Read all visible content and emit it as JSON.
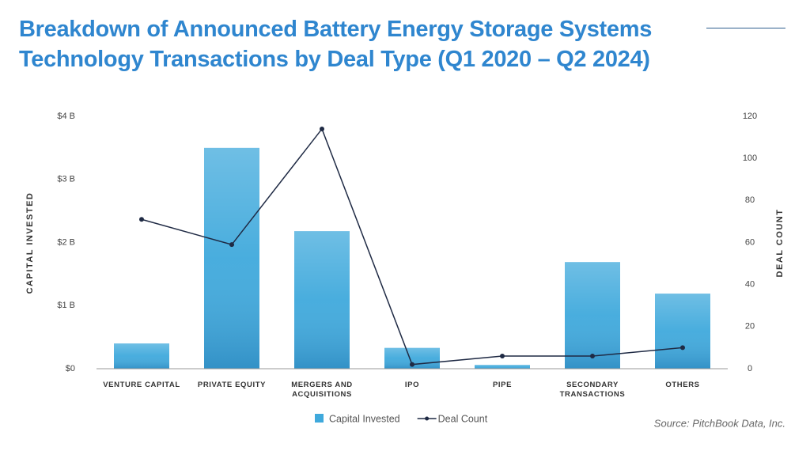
{
  "chart_data": {
    "type": "bar-line",
    "title": "Breakdown of Announced Battery Energy Storage Systems Technology Transactions by Deal Type (Q1 2020 – Q2 2024)",
    "categories": [
      "VENTURE CAPITAL",
      "PRIVATE EQUITY",
      "MERGERS AND ACQUISITIONS",
      "IPO",
      "PIPE",
      "SECONDARY TRANSACTIONS",
      "OTHERS"
    ],
    "series": [
      {
        "name": "Capital Invested",
        "type": "bar",
        "color": "#3fa9dc",
        "values": [
          0.4,
          3.5,
          2.18,
          0.33,
          0.06,
          1.69,
          1.19
        ]
      },
      {
        "name": "Deal Count",
        "type": "line",
        "axis": "y2",
        "color": "#1f2a44",
        "values": [
          71,
          59,
          114,
          2,
          6,
          6,
          10
        ]
      }
    ],
    "ylabel": "CAPITAL INVESTED",
    "y2label": "DEAL COUNT",
    "ylim": [
      0,
      4
    ],
    "yticks": [
      {
        "value": 0,
        "label": "$0"
      },
      {
        "value": 1,
        "label": "$1 B"
      },
      {
        "value": 2,
        "label": "$2 B"
      },
      {
        "value": 3,
        "label": "$3 B"
      },
      {
        "value": 4,
        "label": "$4 B"
      }
    ],
    "y2lim": [
      0,
      120
    ],
    "y2ticks": [
      0,
      20,
      40,
      60,
      80,
      100,
      120
    ],
    "source": "Source: PitchBook Data, Inc."
  }
}
